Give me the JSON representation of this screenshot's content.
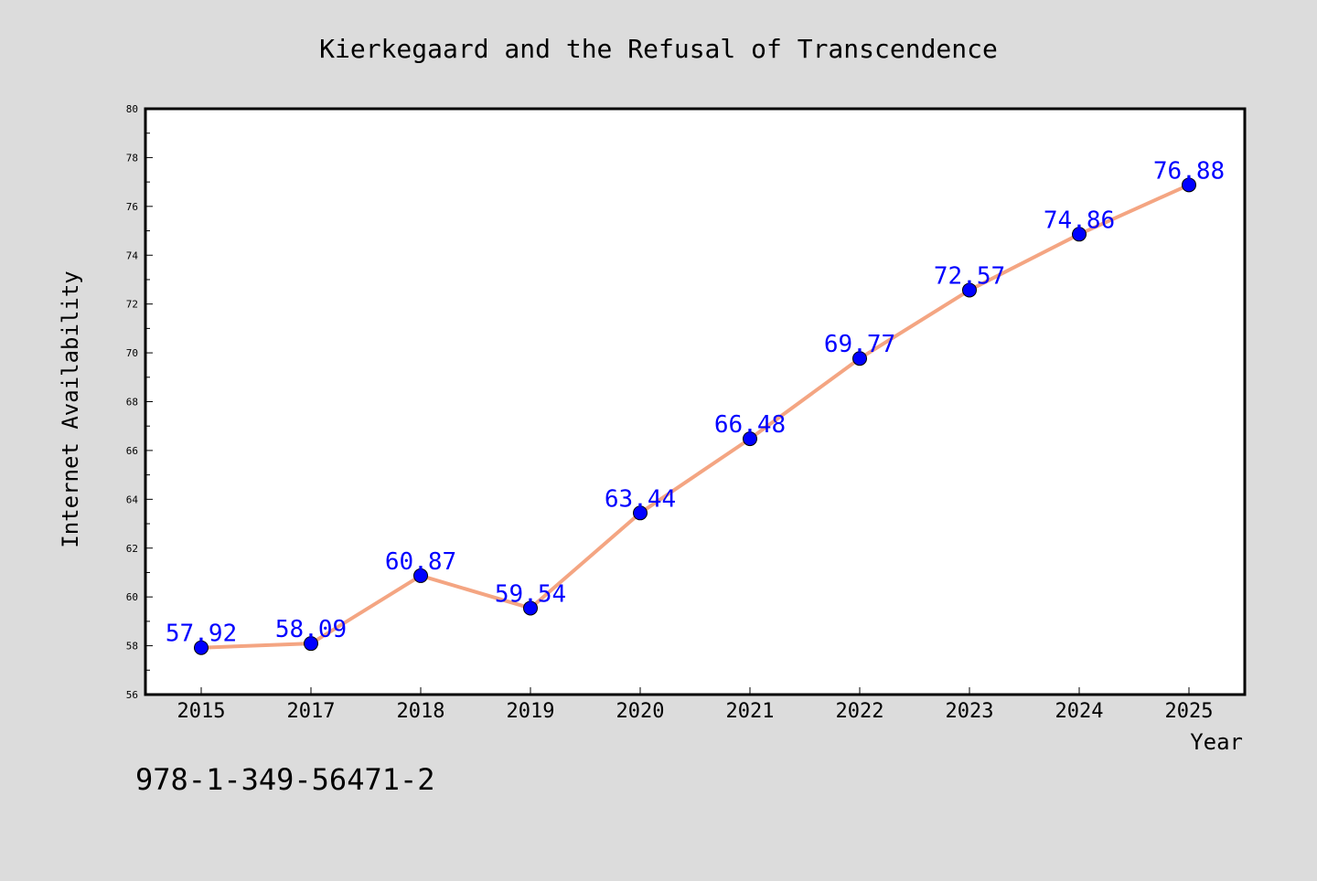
{
  "chart_data": {
    "type": "line",
    "title": "Kierkegaard and the Refusal of Transcendence",
    "xlabel": "Year",
    "ylabel": "Internet Availability",
    "categories": [
      "2015",
      "2017",
      "2018",
      "2019",
      "2020",
      "2021",
      "2022",
      "2023",
      "2024",
      "2025"
    ],
    "series": [
      {
        "values": [
          57.92,
          58.09,
          60.87,
          59.54,
          63.44,
          66.48,
          69.77,
          72.57,
          74.86,
          76.88
        ],
        "labels": [
          "57.92",
          "58.09",
          "60.87",
          "59.54",
          "63.44",
          "66.48",
          "69.77",
          "72.57",
          "74.86",
          "76.88"
        ]
      }
    ],
    "ylim": [
      56,
      80
    ],
    "yticks": [
      "56",
      "58",
      "60",
      "62",
      "64",
      "66",
      "68",
      "70",
      "72",
      "74",
      "76",
      "78",
      "80"
    ],
    "grid": false,
    "legend": "none",
    "colors": {
      "line": "#f4a582",
      "marker": "#0000ff",
      "label": "#0000ff",
      "background": "#dcdcdc",
      "plot_background": "#ffffff"
    }
  },
  "footer": {
    "isbn": "978-1-349-56471-2"
  }
}
